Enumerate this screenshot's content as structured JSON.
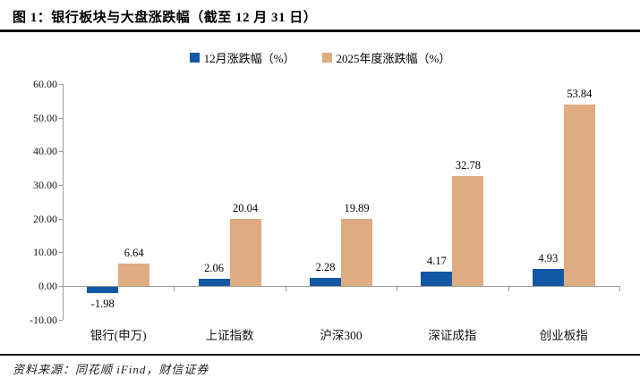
{
  "figure": {
    "title": "图 1：银行板块与大盘涨跌幅（截至 12 月 31 日）",
    "source": "资料来源：同花顺 iFind，财信证券"
  },
  "legend": [
    {
      "label": "12月涨跌幅（%）",
      "color": "#1358a6"
    },
    {
      "label": "2025年度涨跌幅（%）",
      "color": "#dfab81"
    }
  ],
  "chart_data": {
    "type": "bar",
    "title": "银行板块与大盘涨跌幅（截至12月31日）",
    "categories": [
      "银行(申万)",
      "上证指数",
      "沪深300",
      "深证成指",
      "创业板指"
    ],
    "series": [
      {
        "name": "12月涨跌幅（%）",
        "color": "#1358a6",
        "values": [
          -1.98,
          2.06,
          2.28,
          4.17,
          4.93
        ]
      },
      {
        "name": "2025年度涨跌幅（%）",
        "color": "#dfab81",
        "values": [
          6.64,
          20.04,
          19.89,
          32.78,
          53.84
        ]
      }
    ],
    "ylim": [
      -10,
      60
    ],
    "ytick_step": 10,
    "ytick_labels": [
      "60.00",
      "50.00",
      "40.00",
      "30.00",
      "20.00",
      "10.00",
      "0.00",
      "-10.00"
    ],
    "grid": false,
    "legend_position": "top",
    "value_label_decimals": 2
  }
}
